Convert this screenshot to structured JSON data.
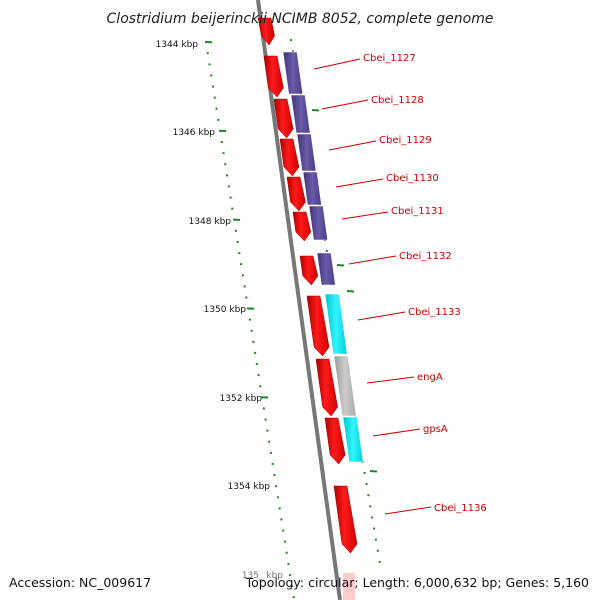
{
  "title": "Clostridium beijerinckii NCIMB 8052, complete genome",
  "footer": {
    "accession": "Accession: NC_009617",
    "topology": "Topology: circular; Length: 6,000,632 bp; Genes: 5,160"
  },
  "ticks": [
    {
      "label": "1344 kbp"
    },
    {
      "label": "1346 kbp"
    },
    {
      "label": "1348 kbp"
    },
    {
      "label": "1350 kbp"
    },
    {
      "label": "1352 kbp"
    },
    {
      "label": "1354 kbp"
    },
    {
      "label": "135_ kbp"
    }
  ],
  "genes": [
    {
      "label": "Cbei_1127"
    },
    {
      "label": "Cbei_1128"
    },
    {
      "label": "Cbei_1129"
    },
    {
      "label": "Cbei_1130"
    },
    {
      "label": "Cbei_1131"
    },
    {
      "label": "Cbei_1132"
    },
    {
      "label": "Cbei_1133"
    },
    {
      "label": "engA"
    },
    {
      "label": "gpsA"
    },
    {
      "label": "Cbei_1136"
    }
  ],
  "colors": {
    "cds": "#ee0000",
    "cog_purple": "#5a4a9a",
    "cog_cyan": "#00e5ee",
    "cog_gray": "#b8b8b8",
    "backbone": "#777777",
    "tick": "#228822",
    "label": "#cc0000"
  }
}
